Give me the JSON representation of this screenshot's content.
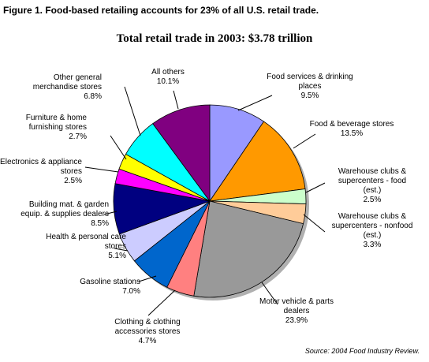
{
  "figure_title": "Figure 1. Food-based retailing accounts for 23% of all U.S. retail trade.",
  "source": "Source: 2004 Food Industry Review.",
  "chart_data": {
    "type": "pie",
    "title": "Total retail trade in 2003: $3.78 trillion",
    "slices": [
      {
        "lines": [
          "Food services & drinking",
          "places"
        ],
        "value": 9.5,
        "label_value": "9.5%",
        "color": "#9999ff"
      },
      {
        "lines": [
          "Food & beverage stores"
        ],
        "value": 13.5,
        "label_value": "13.5%",
        "color": "#ff9900"
      },
      {
        "lines": [
          "Warehouse clubs &",
          "supercenters - food",
          "(est.)"
        ],
        "value": 2.5,
        "label_value": "2.5%",
        "color": "#ccffcc"
      },
      {
        "lines": [
          "Warehouse clubs &",
          "supercenters - nonfood",
          "(est.)"
        ],
        "value": 3.3,
        "label_value": "3.3%",
        "color": "#ffcc99"
      },
      {
        "lines": [
          "Motor vehicle & parts",
          "dealers"
        ],
        "value": 23.9,
        "label_value": "23.9%",
        "color": "#999999"
      },
      {
        "lines": [
          "Clothing & clothing",
          "accessories stores"
        ],
        "value": 4.7,
        "label_value": "4.7%",
        "color": "#ff8080"
      },
      {
        "lines": [
          "Gasoline stations"
        ],
        "value": 7.0,
        "label_value": "7.0%",
        "color": "#0066cc"
      },
      {
        "lines": [
          "Health & personal care",
          "stores"
        ],
        "value": 5.1,
        "label_value": "5.1%",
        "color": "#ccccff"
      },
      {
        "lines": [
          "Building mat. & garden",
          "equip. & supplies dealers"
        ],
        "value": 8.5,
        "label_value": "8.5%",
        "color": "#000080"
      },
      {
        "lines": [
          "Electronics & appliance",
          "stores"
        ],
        "value": 2.5,
        "label_value": "2.5%",
        "color": "#ff00ff"
      },
      {
        "lines": [
          "Furniture & home",
          "furnishing stores"
        ],
        "value": 2.7,
        "label_value": "2.7%",
        "color": "#ffff00"
      },
      {
        "lines": [
          "Other general",
          "merchandise stores"
        ],
        "value": 6.8,
        "label_value": "6.8%",
        "color": "#00ffff"
      },
      {
        "lines": [
          "All others"
        ],
        "value": 10.1,
        "label_value": "10.1%",
        "color": "#800080"
      }
    ]
  }
}
